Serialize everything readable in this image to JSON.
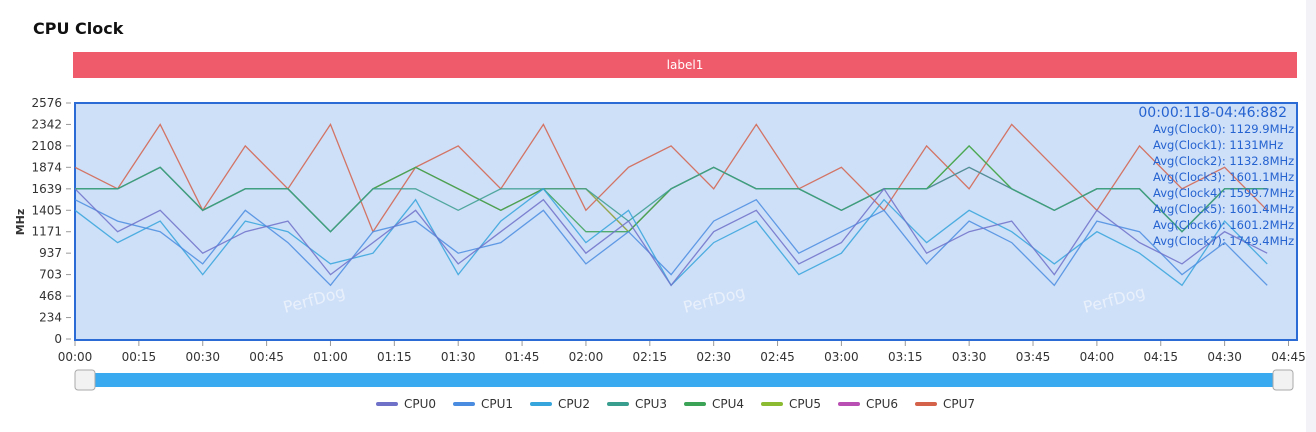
{
  "chart_data": {
    "type": "line",
    "title": "CPU Clock",
    "band_label": "label1",
    "y_label": "MHz",
    "watermark": "PerfDog",
    "time_range": "00:00:118-04:46:882",
    "averages": [
      "Avg(Clock0): 1129.9MHz",
      "Avg(Clock1): 1131MHz",
      "Avg(Clock2): 1132.8MHz",
      "Avg(Clock3): 1601.1MHz",
      "Avg(Clock4): 1599.7MHz",
      "Avg(Clock5): 1601.4MHz",
      "Avg(Clock6): 1601.2MHz",
      "Avg(Clock7): 1749.4MHz"
    ],
    "grid": false,
    "xlim": [
      0,
      287
    ],
    "ylim": [
      0,
      2576
    ],
    "yticks": [
      0,
      234,
      468,
      703,
      937,
      1171,
      1405,
      1639,
      1874,
      2108,
      2342,
      2576
    ],
    "xticks": [
      {
        "value": 0,
        "label": "00:00"
      },
      {
        "value": 15,
        "label": "00:15"
      },
      {
        "value": 30,
        "label": "00:30"
      },
      {
        "value": 45,
        "label": "00:45"
      },
      {
        "value": 60,
        "label": "01:00"
      },
      {
        "value": 75,
        "label": "01:15"
      },
      {
        "value": 90,
        "label": "01:30"
      },
      {
        "value": 105,
        "label": "01:45"
      },
      {
        "value": 120,
        "label": "02:00"
      },
      {
        "value": 135,
        "label": "02:15"
      },
      {
        "value": 150,
        "label": "02:30"
      },
      {
        "value": 165,
        "label": "02:45"
      },
      {
        "value": 180,
        "label": "03:00"
      },
      {
        "value": 195,
        "label": "03:15"
      },
      {
        "value": 210,
        "label": "03:30"
      },
      {
        "value": 225,
        "label": "03:45"
      },
      {
        "value": 240,
        "label": "04:00"
      },
      {
        "value": 255,
        "label": "04:15"
      },
      {
        "value": 270,
        "label": "04:30"
      },
      {
        "value": 285,
        "label": "04:45"
      }
    ],
    "x": [
      0,
      10,
      20,
      30,
      40,
      50,
      60,
      70,
      80,
      90,
      100,
      110,
      120,
      130,
      140,
      150,
      160,
      170,
      180,
      190,
      200,
      210,
      220,
      230,
      240,
      250,
      260,
      270,
      280
    ],
    "series": [
      {
        "name": "CPU0",
        "color": "#6f71c9",
        "values": [
          1639,
          1171,
          1405,
          937,
          1171,
          1287,
          703,
          1052,
          1405,
          820,
          1171,
          1520,
          937,
          1287,
          586,
          1171,
          1405,
          820,
          1052,
          1639,
          937,
          1171,
          1287,
          703,
          1405,
          1052,
          820,
          1171,
          937
        ]
      },
      {
        "name": "CPU1",
        "color": "#4a8de0",
        "values": [
          1520,
          1287,
          1171,
          820,
          1405,
          1052,
          586,
          1171,
          1287,
          937,
          1052,
          1405,
          820,
          1171,
          703,
          1287,
          1520,
          937,
          1171,
          1405,
          820,
          1287,
          1052,
          586,
          1287,
          1171,
          703,
          1052,
          586
        ]
      },
      {
        "name": "CPU2",
        "color": "#35a5dc",
        "values": [
          1405,
          1052,
          1287,
          703,
          1287,
          1171,
          820,
          937,
          1520,
          703,
          1287,
          1639,
          1052,
          1405,
          586,
          1052,
          1287,
          703,
          937,
          1520,
          1052,
          1405,
          1171,
          820,
          1171,
          937,
          586,
          1287,
          820
        ]
      },
      {
        "name": "CPU3",
        "color": "#3a9e8e",
        "values": [
          1639,
          1639,
          1874,
          1405,
          1639,
          1639,
          1171,
          1639,
          1639,
          1405,
          1639,
          1639,
          1639,
          1287,
          1639,
          1874,
          1639,
          1639,
          1405,
          1639,
          1639,
          1874,
          1639,
          1405,
          1639,
          1639,
          1171,
          1639,
          1639
        ]
      },
      {
        "name": "CPU4",
        "color": "#3aa356",
        "values": [
          1639,
          1639,
          1874,
          1405,
          1639,
          1639,
          1171,
          1639,
          1874,
          1639,
          1405,
          1639,
          1171,
          1171,
          1639,
          1874,
          1639,
          1639,
          1405,
          1639,
          1639,
          2108,
          1639,
          1405,
          1639,
          1639,
          1171,
          1639,
          1639
        ]
      },
      {
        "name": "CPU5",
        "color": "#8cbb32",
        "values": [
          1639,
          1639,
          1874,
          1405,
          1639,
          1639,
          1171,
          1639,
          1874,
          1639,
          1405,
          1639,
          1639,
          1171,
          1639,
          1874,
          1639,
          1639,
          1405,
          1639,
          1639,
          2108,
          1639,
          1405,
          1639,
          1639,
          1171,
          1639,
          1639
        ]
      },
      {
        "name": "CPU6",
        "color": "#b94fb3",
        "values": [
          1639,
          1639,
          1874,
          1405,
          1639,
          1639,
          1171,
          1639,
          1874,
          1639,
          1405,
          1639,
          1639,
          1171,
          1639,
          1874,
          1639,
          1639,
          1405,
          1639,
          1639,
          1874,
          1639,
          1405,
          1639,
          1639,
          1171,
          1639,
          1639
        ]
      },
      {
        "name": "CPU7",
        "color": "#d4614a",
        "values": [
          1874,
          1639,
          2342,
          1405,
          2108,
          1639,
          2342,
          1171,
          1874,
          2108,
          1639,
          2342,
          1405,
          1874,
          2108,
          1639,
          2342,
          1639,
          1874,
          1405,
          2108,
          1639,
          2342,
          1874,
          1405,
          2108,
          1639,
          1874,
          1405
        ]
      }
    ]
  }
}
